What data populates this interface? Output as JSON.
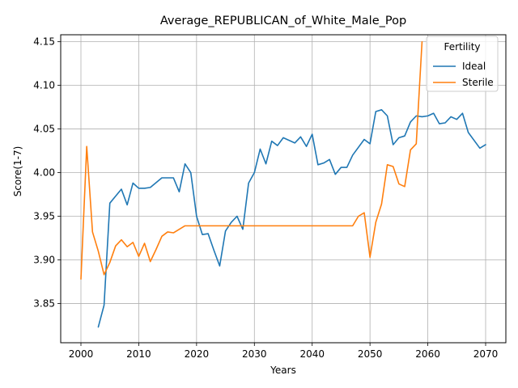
{
  "chart_data": {
    "type": "line",
    "title": "Average_REPUBLICAN_of_White_Male_Pop",
    "xlabel": "Years",
    "ylabel": "Score(1-7)",
    "xlim": [
      1996.5,
      2073.5
    ],
    "ylim": [
      3.805,
      4.158
    ],
    "xticks": [
      2000,
      2010,
      2020,
      2030,
      2040,
      2050,
      2060,
      2070
    ],
    "yticks": [
      3.85,
      3.9,
      3.95,
      4.0,
      4.05,
      4.1,
      4.15
    ],
    "ytick_labels": [
      "3.85",
      "3.90",
      "3.95",
      "4.00",
      "4.05",
      "4.10",
      "4.15"
    ],
    "grid": true,
    "legend": {
      "title": "Fertility",
      "placement": "upper right"
    },
    "series": [
      {
        "name": "Ideal",
        "color": "#1f77b4",
        "points": [
          [
            2003,
            3.823
          ],
          [
            2004,
            3.848
          ],
          [
            2005,
            3.965
          ],
          [
            2006,
            3.973
          ],
          [
            2007,
            3.981
          ],
          [
            2008,
            3.963
          ],
          [
            2009,
            3.988
          ],
          [
            2010,
            3.982
          ],
          [
            2011,
            3.982
          ],
          [
            2012,
            3.983
          ],
          [
            2014,
            3.994
          ],
          [
            2015,
            3.994
          ],
          [
            2016,
            3.994
          ],
          [
            2017,
            3.978
          ],
          [
            2018,
            4.01
          ],
          [
            2019,
            4.0
          ],
          [
            2020,
            3.95
          ],
          [
            2021,
            3.929
          ],
          [
            2022,
            3.93
          ],
          [
            2023,
            3.911
          ],
          [
            2024,
            3.893
          ],
          [
            2025,
            3.933
          ],
          [
            2026,
            3.943
          ],
          [
            2027,
            3.95
          ],
          [
            2028,
            3.935
          ],
          [
            2029,
            3.988
          ],
          [
            2030,
            4.0
          ],
          [
            2031,
            4.027
          ],
          [
            2032,
            4.01
          ],
          [
            2033,
            4.036
          ],
          [
            2034,
            4.031
          ],
          [
            2035,
            4.04
          ],
          [
            2037,
            4.034
          ],
          [
            2038,
            4.041
          ],
          [
            2039,
            4.03
          ],
          [
            2040,
            4.044
          ],
          [
            2041,
            4.009
          ],
          [
            2042,
            4.011
          ],
          [
            2043,
            4.015
          ],
          [
            2044,
            3.998
          ],
          [
            2045,
            4.006
          ],
          [
            2046,
            4.006
          ],
          [
            2047,
            4.02
          ],
          [
            2049,
            4.038
          ],
          [
            2050,
            4.033
          ],
          [
            2051,
            4.07
          ],
          [
            2052,
            4.072
          ],
          [
            2053,
            4.065
          ],
          [
            2054,
            4.032
          ],
          [
            2055,
            4.04
          ],
          [
            2056,
            4.042
          ],
          [
            2057,
            4.058
          ],
          [
            2058,
            4.065
          ],
          [
            2059,
            4.064
          ],
          [
            2060,
            4.065
          ],
          [
            2061,
            4.068
          ],
          [
            2062,
            4.056
          ],
          [
            2063,
            4.057
          ],
          [
            2064,
            4.064
          ],
          [
            2065,
            4.061
          ],
          [
            2066,
            4.068
          ],
          [
            2067,
            4.046
          ],
          [
            2069,
            4.028
          ],
          [
            2070,
            4.032
          ]
        ]
      },
      {
        "name": "Sterile",
        "color": "#ff7f0e",
        "points": [
          [
            2000,
            3.878
          ],
          [
            2001,
            4.03
          ],
          [
            2002,
            3.932
          ],
          [
            2003,
            3.91
          ],
          [
            2004,
            3.883
          ],
          [
            2005,
            3.897
          ],
          [
            2006,
            3.916
          ],
          [
            2007,
            3.923
          ],
          [
            2008,
            3.915
          ],
          [
            2009,
            3.92
          ],
          [
            2010,
            3.904
          ],
          [
            2011,
            3.919
          ],
          [
            2012,
            3.898
          ],
          [
            2013,
            3.912
          ],
          [
            2014,
            3.927
          ],
          [
            2015,
            3.932
          ],
          [
            2016,
            3.931
          ],
          [
            2017,
            3.935
          ],
          [
            2018,
            3.939
          ],
          [
            2020,
            3.939
          ],
          [
            2030,
            3.939
          ],
          [
            2040,
            3.939
          ],
          [
            2047,
            3.939
          ],
          [
            2048,
            3.95
          ],
          [
            2049,
            3.954
          ],
          [
            2050,
            3.903
          ],
          [
            2051,
            3.943
          ],
          [
            2052,
            3.964
          ],
          [
            2053,
            4.009
          ],
          [
            2054,
            4.007
          ],
          [
            2055,
            3.987
          ],
          [
            2056,
            3.984
          ],
          [
            2057,
            4.026
          ],
          [
            2058,
            4.033
          ],
          [
            2059,
            4.15
          ]
        ]
      }
    ]
  }
}
